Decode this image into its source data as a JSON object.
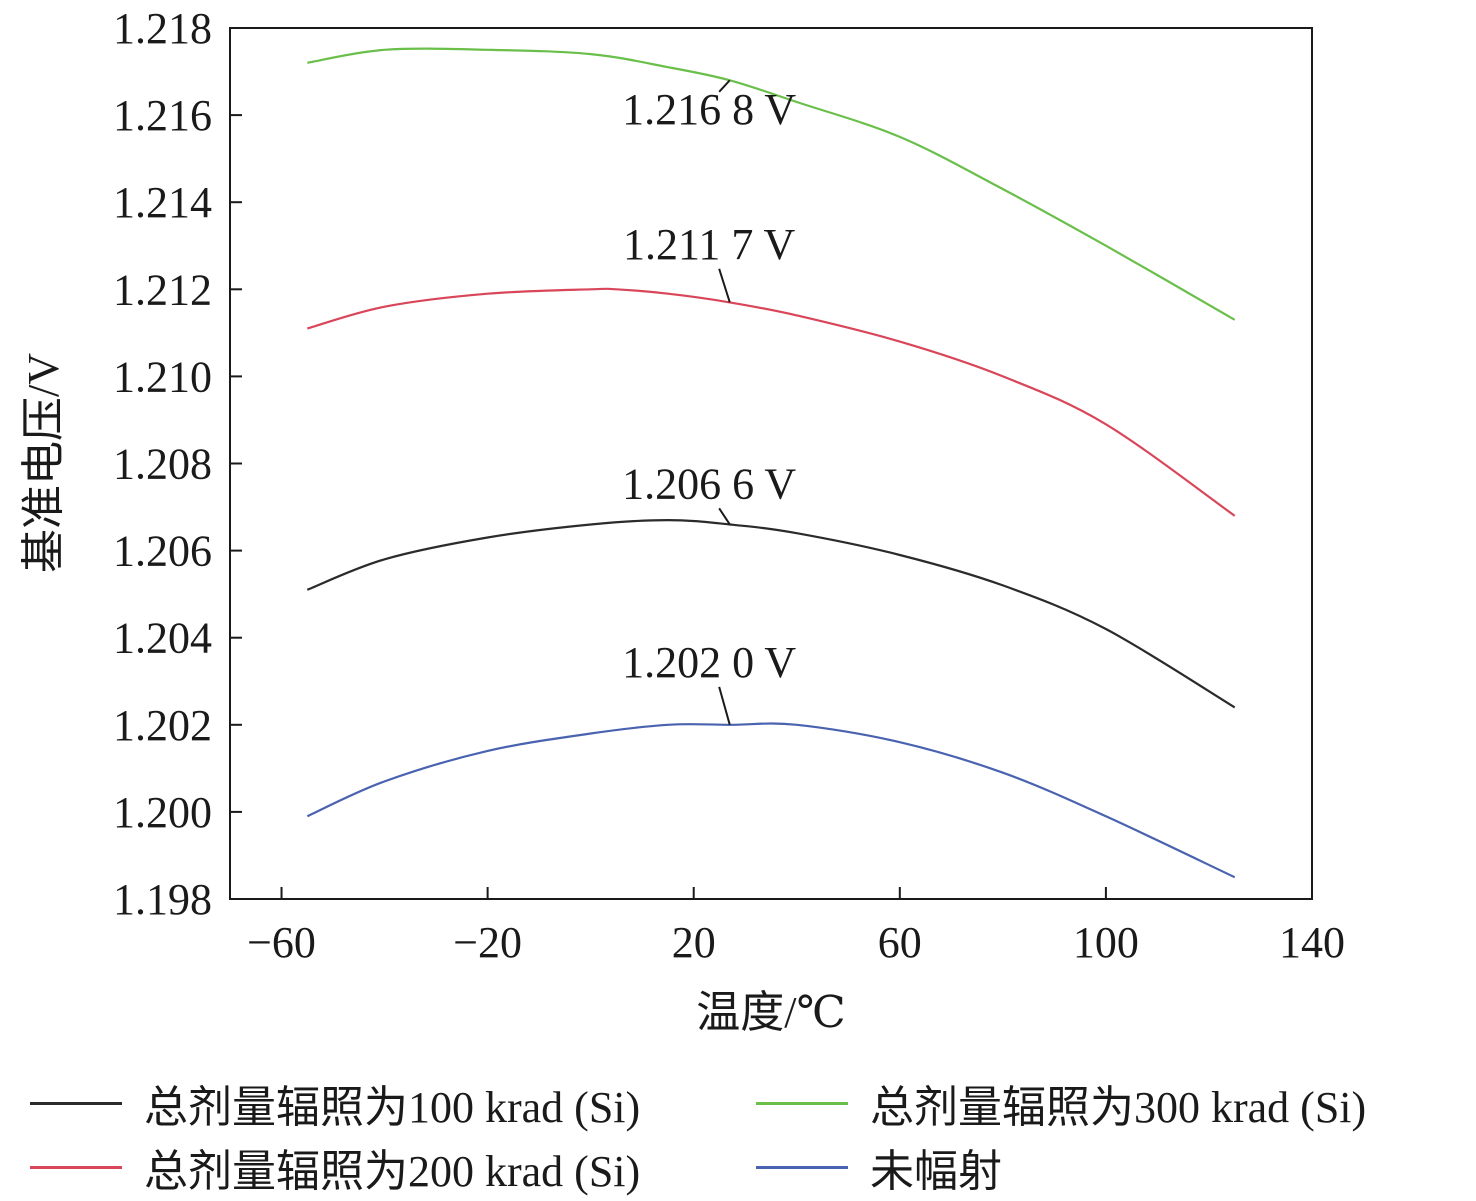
{
  "chart_data": {
    "type": "line",
    "xlabel": "温度/℃",
    "ylabel": "基准电压/V",
    "xlim": [
      -70,
      140
    ],
    "ylim": [
      1.198,
      1.218
    ],
    "x_ticks": [
      -60,
      -20,
      20,
      60,
      100,
      140
    ],
    "y_ticks": [
      1.198,
      1.2,
      1.202,
      1.204,
      1.206,
      1.208,
      1.21,
      1.212,
      1.214,
      1.216,
      1.218
    ],
    "x_tick_labels": [
      "−60",
      "−20",
      "20",
      "60",
      "100",
      "140"
    ],
    "y_tick_labels": [
      "1.198",
      "1.200",
      "1.202",
      "1.204",
      "1.206",
      "1.208",
      "1.210",
      "1.212",
      "1.214",
      "1.216",
      "1.218"
    ],
    "grid": false,
    "legend_position": "bottom",
    "series": [
      {
        "name": "总剂量辐照为100 krad (Si)",
        "color": "#2b2b2b",
        "x": [
          -55,
          -40,
          -20,
          0,
          15,
          27,
          40,
          60,
          80,
          100,
          125
        ],
        "y": [
          1.2051,
          1.2058,
          1.2063,
          1.2066,
          1.2067,
          1.2066,
          1.2064,
          1.2059,
          1.2052,
          1.2042,
          1.2024
        ]
      },
      {
        "name": "总剂量辐照为200 krad (Si)",
        "color": "#d9465a",
        "x": [
          -55,
          -40,
          -20,
          0,
          5,
          15,
          27,
          40,
          60,
          80,
          100,
          125
        ],
        "y": [
          1.2111,
          1.2116,
          1.2119,
          1.212,
          1.212,
          1.2119,
          1.2117,
          1.2114,
          1.2108,
          1.21,
          1.2089,
          1.2068
        ]
      },
      {
        "name": "总剂量辐照为300 krad (Si)",
        "color": "#6abf4b",
        "x": [
          -55,
          -40,
          -20,
          0,
          15,
          27,
          40,
          60,
          80,
          100,
          125
        ],
        "y": [
          1.2172,
          1.2175,
          1.2175,
          1.2174,
          1.2171,
          1.2168,
          1.2163,
          1.2155,
          1.2143,
          1.213,
          1.2113
        ]
      },
      {
        "name": "未幅射",
        "color": "#4a63b0",
        "x": [
          -55,
          -40,
          -20,
          0,
          15,
          27,
          40,
          60,
          80,
          100,
          125
        ],
        "y": [
          1.1999,
          1.2007,
          1.2014,
          1.2018,
          1.202,
          1.202,
          1.202,
          1.2016,
          1.2009,
          1.1999,
          1.1985
        ]
      }
    ],
    "annotations": [
      {
        "text": "1.216 8 V",
        "x": 27,
        "y": 1.2168,
        "label_x": 23,
        "label_y": 1.2158
      },
      {
        "text": "1.211 7 V",
        "x": 27,
        "y": 1.2117,
        "label_x": 23,
        "label_y": 1.2127
      },
      {
        "text": "1.206 6 V",
        "x": 27,
        "y": 1.2066,
        "label_x": 23,
        "label_y": 1.2072
      },
      {
        "text": "1.202 0 V",
        "x": 27,
        "y": 1.202,
        "label_x": 23,
        "label_y": 1.2031
      }
    ]
  },
  "legend": {
    "items": [
      {
        "label": "总剂量辐照为100 krad (Si)",
        "color": "#2b2b2b"
      },
      {
        "label": "总剂量辐照为300 krad (Si)",
        "color": "#6abf4b"
      },
      {
        "label": "总剂量辐照为200 krad (Si)",
        "color": "#d9465a"
      },
      {
        "label": "未幅射",
        "color": "#4a63b0"
      }
    ]
  }
}
